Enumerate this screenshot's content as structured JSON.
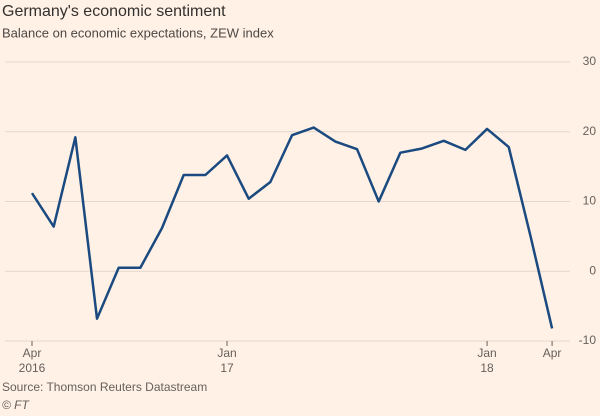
{
  "chart_data": {
    "type": "line",
    "title": "Germany's economic sentiment",
    "subtitle": "Balance on economic expectations, ZEW index",
    "source": "Source: Thomson Reuters Datastream",
    "credit": "© FT",
    "categories": [
      "Apr",
      null,
      null,
      null,
      null,
      null,
      null,
      null,
      null,
      "Jan",
      null,
      null,
      null,
      null,
      null,
      null,
      null,
      null,
      null,
      null,
      null,
      "Jan",
      null,
      null,
      "Apr"
    ],
    "category_sublabels": [
      "2016",
      null,
      null,
      null,
      null,
      null,
      null,
      null,
      null,
      "17",
      null,
      null,
      null,
      null,
      null,
      null,
      null,
      null,
      null,
      null,
      null,
      "18",
      null,
      null,
      null
    ],
    "series": [
      {
        "name": "ZEW index",
        "color": "#1a4a80",
        "values": [
          11.2,
          6.4,
          19.2,
          -6.8,
          0.5,
          0.5,
          6.2,
          13.8,
          13.8,
          16.6,
          10.4,
          12.8,
          19.5,
          20.6,
          18.6,
          17.5,
          10.0,
          17.0,
          17.6,
          18.7,
          17.4,
          20.4,
          17.8,
          5.1,
          -8.2
        ]
      }
    ],
    "ylim": [
      -10,
      30
    ],
    "yticks": [
      -10,
      0,
      10,
      20,
      30
    ],
    "grid": true
  }
}
